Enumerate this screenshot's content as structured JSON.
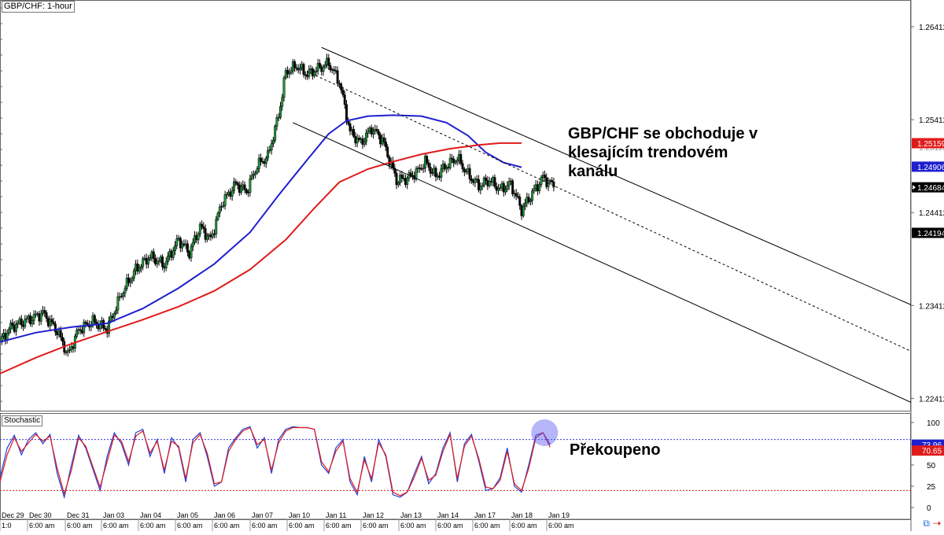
{
  "chart_data": [
    {
      "type": "candlestick",
      "symbol_label": "GBP/CHF: 1-hour",
      "y_axis": {
        "range": [
          1.2228,
          1.267
        ],
        "ticks": [
          "1.26412",
          "1.25412",
          "1.24412",
          "1.23412",
          "1.22412"
        ],
        "extra_tick_faded": "1.25115"
      },
      "x_axis": {
        "date_labels": [
          "Dec 29",
          "Dec 30",
          "Dec 31",
          "Jan 03",
          "Jan 04",
          "Jan 05",
          "Jan 06",
          "Jan 07",
          "Jan 10",
          "Jan 11",
          "Jan 12",
          "Jan 13",
          "Jan 14",
          "Jan 17",
          "Jan 18",
          "Jan 19"
        ],
        "time_labels": [
          "1:0",
          "6:00 am",
          "6:00 am",
          "6:00 am",
          "6:00 am",
          "6:00 am",
          "6:00 am",
          "6:00 am",
          "6:00 am",
          "6:00 am",
          "6:00 am",
          "6:00 am",
          "6:00 am",
          "6:00 am",
          "6:00 am",
          "6:00 am"
        ]
      },
      "price_path": [
        {
          "t": 0,
          "p": 1.2302
        },
        {
          "t": 3,
          "p": 1.2318
        },
        {
          "t": 8,
          "p": 1.2326
        },
        {
          "t": 12,
          "p": 1.2333
        },
        {
          "t": 16,
          "p": 1.2314
        },
        {
          "t": 19,
          "p": 1.2288
        },
        {
          "t": 22,
          "p": 1.2315
        },
        {
          "t": 26,
          "p": 1.2324
        },
        {
          "t": 30,
          "p": 1.2316
        },
        {
          "t": 34,
          "p": 1.2354
        },
        {
          "t": 38,
          "p": 1.238
        },
        {
          "t": 42,
          "p": 1.2394
        },
        {
          "t": 46,
          "p": 1.2385
        },
        {
          "t": 50,
          "p": 1.2412
        },
        {
          "t": 53,
          "p": 1.2398
        },
        {
          "t": 56,
          "p": 1.2426
        },
        {
          "t": 59,
          "p": 1.2412
        },
        {
          "t": 62,
          "p": 1.2451
        },
        {
          "t": 66,
          "p": 1.2472
        },
        {
          "t": 69,
          "p": 1.2464
        },
        {
          "t": 72,
          "p": 1.2492
        },
        {
          "t": 75,
          "p": 1.2502
        },
        {
          "t": 78,
          "p": 1.2546
        },
        {
          "t": 80,
          "p": 1.2592
        },
        {
          "t": 83,
          "p": 1.2599
        },
        {
          "t": 86,
          "p": 1.259
        },
        {
          "t": 89,
          "p": 1.2596
        },
        {
          "t": 92,
          "p": 1.2602
        },
        {
          "t": 95,
          "p": 1.2582
        },
        {
          "t": 98,
          "p": 1.2528
        },
        {
          "t": 101,
          "p": 1.2516
        },
        {
          "t": 104,
          "p": 1.2532
        },
        {
          "t": 107,
          "p": 1.252
        },
        {
          "t": 109,
          "p": 1.2498
        },
        {
          "t": 111,
          "p": 1.2476
        },
        {
          "t": 114,
          "p": 1.2478
        },
        {
          "t": 117,
          "p": 1.2486
        },
        {
          "t": 119,
          "p": 1.2496
        },
        {
          "t": 122,
          "p": 1.248
        },
        {
          "t": 125,
          "p": 1.2492
        },
        {
          "t": 128,
          "p": 1.25
        },
        {
          "t": 131,
          "p": 1.2482
        },
        {
          "t": 134,
          "p": 1.247
        },
        {
          "t": 137,
          "p": 1.2476
        },
        {
          "t": 140,
          "p": 1.2466
        },
        {
          "t": 143,
          "p": 1.2472
        },
        {
          "t": 146,
          "p": 1.2444
        },
        {
          "t": 149,
          "p": 1.2462
        },
        {
          "t": 152,
          "p": 1.2479
        },
        {
          "t": 155,
          "p": 1.247
        }
      ],
      "moving_averages": [
        {
          "name": "MA blue",
          "color": "#1f1fcf",
          "points": [
            [
              0,
              1.2302
            ],
            [
              10,
              1.2312
            ],
            [
              20,
              1.2318
            ],
            [
              30,
              1.2322
            ],
            [
              40,
              1.2338
            ],
            [
              50,
              1.236
            ],
            [
              60,
              1.2386
            ],
            [
              70,
              1.242
            ],
            [
              78,
              1.246
            ],
            [
              86,
              1.2498
            ],
            [
              92,
              1.2526
            ],
            [
              97,
              1.254
            ],
            [
              103,
              1.2545
            ],
            [
              110,
              1.2546
            ],
            [
              118,
              1.2545
            ],
            [
              125,
              1.2538
            ],
            [
              131,
              1.2524
            ],
            [
              136,
              1.2506
            ],
            [
              141,
              1.2495
            ],
            [
              146,
              1.249
            ]
          ]
        },
        {
          "name": "MA red",
          "color": "#e01b1b",
          "points": [
            [
              0,
              1.2268
            ],
            [
              10,
              1.2285
            ],
            [
              20,
              1.23
            ],
            [
              30,
              1.2313
            ],
            [
              40,
              1.2326
            ],
            [
              50,
              1.234
            ],
            [
              60,
              1.2357
            ],
            [
              70,
              1.238
            ],
            [
              80,
              1.2412
            ],
            [
              88,
              1.2446
            ],
            [
              95,
              1.2474
            ],
            [
              103,
              1.2488
            ],
            [
              110,
              1.2496
            ],
            [
              118,
              1.2504
            ],
            [
              126,
              1.251
            ],
            [
              134,
              1.2514
            ],
            [
              140,
              1.2516
            ],
            [
              146,
              1.2516
            ]
          ]
        }
      ],
      "price_tags": [
        {
          "value": "1.25159",
          "color": "#e01b1b"
        },
        {
          "value": "1.24906",
          "color": "#1f1fcf"
        },
        {
          "value": "1.24684",
          "color": "#000000"
        },
        {
          "value": "1.24194",
          "color": "#000000"
        }
      ],
      "channel_lines": [
        {
          "style": "solid",
          "from": [
            90,
            1.2619
          ],
          "to": [
            255,
            1.2342
          ]
        },
        {
          "style": "dashed",
          "from": [
            86,
            1.2593
          ],
          "to": [
            255,
            1.2292
          ]
        },
        {
          "style": "solid",
          "from": [
            82,
            1.2538
          ],
          "to": [
            255,
            1.2237
          ]
        }
      ],
      "annotation": "GBP/CHF se obchoduje v klesajícím trendovém kanálu"
    },
    {
      "type": "line",
      "label": "Stochastic",
      "y_axis": {
        "range": [
          0,
          100
        ],
        "ticks": [
          "100",
          "75",
          "50",
          "25",
          "0"
        ]
      },
      "levels": [
        {
          "value": 80,
          "color": "#3b3bd9"
        },
        {
          "value": 20,
          "color": "#e01b1b"
        }
      ],
      "value_tags": [
        {
          "value": "73.96",
          "color": "#1f1fcf"
        },
        {
          "value": "70.65",
          "color": "#e01b1b"
        }
      ],
      "series": [
        {
          "color": "#1f3fe0",
          "values": [
            [
              0,
              35
            ],
            [
              2,
              70
            ],
            [
              4,
              85
            ],
            [
              6,
              62
            ],
            [
              8,
              80
            ],
            [
              10,
              88
            ],
            [
              12,
              75
            ],
            [
              14,
              86
            ],
            [
              16,
              40
            ],
            [
              18,
              12
            ],
            [
              20,
              50
            ],
            [
              22,
              85
            ],
            [
              24,
              70
            ],
            [
              26,
              45
            ],
            [
              28,
              20
            ],
            [
              30,
              60
            ],
            [
              32,
              88
            ],
            [
              34,
              75
            ],
            [
              36,
              50
            ],
            [
              38,
              88
            ],
            [
              40,
              92
            ],
            [
              42,
              60
            ],
            [
              44,
              80
            ],
            [
              46,
              40
            ],
            [
              48,
              82
            ],
            [
              50,
              70
            ],
            [
              52,
              30
            ],
            [
              54,
              80
            ],
            [
              56,
              88
            ],
            [
              58,
              60
            ],
            [
              60,
              25
            ],
            [
              62,
              30
            ],
            [
              64,
              70
            ],
            [
              66,
              82
            ],
            [
              68,
              92
            ],
            [
              70,
              95
            ],
            [
              72,
              70
            ],
            [
              74,
              82
            ],
            [
              76,
              40
            ],
            [
              78,
              80
            ],
            [
              80,
              92
            ],
            [
              82,
              95
            ],
            [
              84,
              94
            ],
            [
              86,
              94
            ],
            [
              88,
              92
            ],
            [
              90,
              50
            ],
            [
              92,
              40
            ],
            [
              94,
              70
            ],
            [
              96,
              80
            ],
            [
              98,
              30
            ],
            [
              100,
              15
            ],
            [
              102,
              60
            ],
            [
              104,
              30
            ],
            [
              106,
              80
            ],
            [
              108,
              60
            ],
            [
              110,
              15
            ],
            [
              112,
              12
            ],
            [
              114,
              18
            ],
            [
              116,
              40
            ],
            [
              118,
              60
            ],
            [
              120,
              28
            ],
            [
              122,
              40
            ],
            [
              124,
              70
            ],
            [
              126,
              88
            ],
            [
              128,
              30
            ],
            [
              130,
              75
            ],
            [
              132,
              86
            ],
            [
              134,
              55
            ],
            [
              136,
              20
            ],
            [
              138,
              22
            ],
            [
              140,
              35
            ],
            [
              142,
              70
            ],
            [
              144,
              25
            ],
            [
              146,
              18
            ],
            [
              148,
              50
            ],
            [
              150,
              85
            ],
            [
              152,
              88
            ],
            [
              154,
              74
            ]
          ]
        },
        {
          "color": "#e01b1b",
          "values": [
            [
              0,
              30
            ],
            [
              2,
              62
            ],
            [
              4,
              82
            ],
            [
              6,
              66
            ],
            [
              8,
              76
            ],
            [
              10,
              86
            ],
            [
              12,
              78
            ],
            [
              14,
              84
            ],
            [
              16,
              46
            ],
            [
              18,
              16
            ],
            [
              20,
              44
            ],
            [
              22,
              82
            ],
            [
              24,
              72
            ],
            [
              26,
              48
            ],
            [
              28,
              24
            ],
            [
              30,
              54
            ],
            [
              32,
              85
            ],
            [
              34,
              78
            ],
            [
              36,
              54
            ],
            [
              38,
              84
            ],
            [
              40,
              90
            ],
            [
              42,
              64
            ],
            [
              44,
              78
            ],
            [
              46,
              44
            ],
            [
              48,
              78
            ],
            [
              50,
              72
            ],
            [
              52,
              34
            ],
            [
              54,
              76
            ],
            [
              56,
              86
            ],
            [
              58,
              64
            ],
            [
              60,
              28
            ],
            [
              62,
              30
            ],
            [
              64,
              66
            ],
            [
              66,
              80
            ],
            [
              68,
              90
            ],
            [
              70,
              94
            ],
            [
              72,
              74
            ],
            [
              74,
              80
            ],
            [
              76,
              44
            ],
            [
              78,
              76
            ],
            [
              80,
              90
            ],
            [
              82,
              94
            ],
            [
              84,
              94
            ],
            [
              86,
              94
            ],
            [
              88,
              92
            ],
            [
              90,
              54
            ],
            [
              92,
              42
            ],
            [
              94,
              66
            ],
            [
              96,
              78
            ],
            [
              98,
              34
            ],
            [
              100,
              18
            ],
            [
              102,
              56
            ],
            [
              104,
              34
            ],
            [
              106,
              76
            ],
            [
              108,
              62
            ],
            [
              110,
              18
            ],
            [
              112,
              14
            ],
            [
              114,
              18
            ],
            [
              116,
              36
            ],
            [
              118,
              58
            ],
            [
              120,
              32
            ],
            [
              122,
              38
            ],
            [
              124,
              66
            ],
            [
              126,
              86
            ],
            [
              128,
              34
            ],
            [
              130,
              72
            ],
            [
              132,
              84
            ],
            [
              134,
              58
            ],
            [
              136,
              24
            ],
            [
              138,
              22
            ],
            [
              140,
              32
            ],
            [
              142,
              66
            ],
            [
              144,
              28
            ],
            [
              146,
              20
            ],
            [
              148,
              46
            ],
            [
              150,
              82
            ],
            [
              152,
              88
            ],
            [
              154,
              71
            ]
          ]
        }
      ],
      "annotation": "Překoupeno"
    }
  ]
}
